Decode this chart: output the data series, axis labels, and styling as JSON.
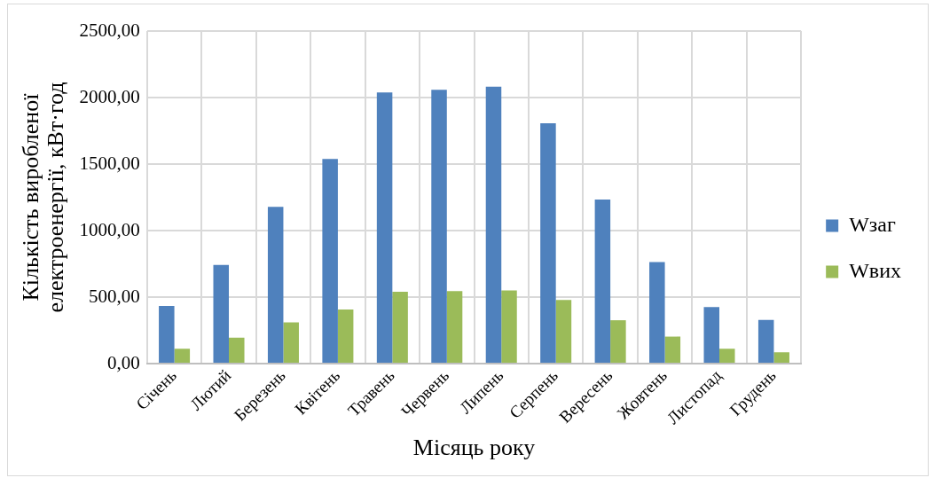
{
  "chart_data": {
    "type": "bar",
    "xlabel": "Місяць року",
    "ylabel": "Кількість виробленої електроенергії, кВт·год",
    "categories": [
      "Січень",
      "Лютий",
      "Березень",
      "Квітень",
      "Травень",
      "Червень",
      "Липень",
      "Серпень",
      "Вересень",
      "Жовтень",
      "Листопад",
      "Грудень"
    ],
    "series": [
      {
        "name": "Wзаг",
        "color": "#4f81bd",
        "values": [
          433,
          742,
          1178,
          1538,
          2038,
          2059,
          2081,
          1806,
          1234,
          764,
          425,
          329
        ]
      },
      {
        "name": "Wвих",
        "color": "#9bbb59",
        "values": [
          112,
          195,
          310,
          406,
          540,
          545,
          550,
          478,
          326,
          203,
          112,
          85
        ]
      }
    ],
    "ylim": [
      0,
      2500
    ],
    "yticks": [
      {
        "value": 0,
        "label": "0,00"
      },
      {
        "value": 500,
        "label": "500,00"
      },
      {
        "value": 1000,
        "label": "1000,00"
      },
      {
        "value": 1500,
        "label": "1500,00"
      },
      {
        "value": 2000,
        "label": "2000,00"
      },
      {
        "value": 2500,
        "label": "2500,00"
      }
    ],
    "grid": true,
    "legend": "right"
  }
}
